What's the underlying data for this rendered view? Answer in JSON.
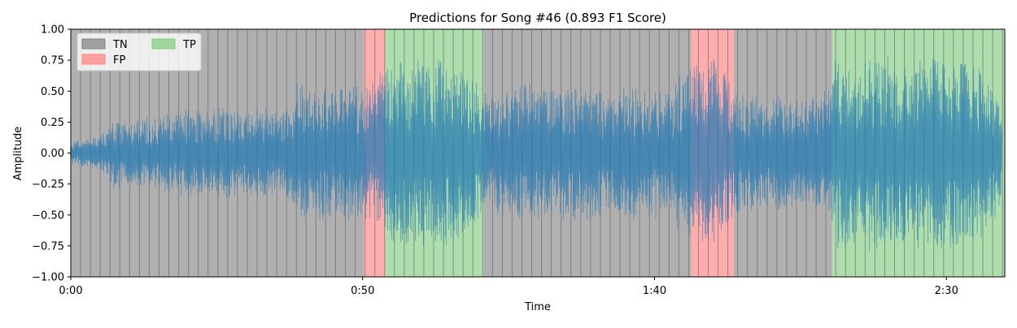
{
  "chart_data": {
    "type": "area",
    "title": "Predictions for Song #46 (0.893 F1 Score)",
    "xlabel": "Time",
    "ylabel": "Amplitude",
    "xlim": [
      0,
      160
    ],
    "ylim": [
      -1.0,
      1.0
    ],
    "x_ticks": [
      {
        "value": 0,
        "label": "0:00"
      },
      {
        "value": 50,
        "label": "0:50"
      },
      {
        "value": 100,
        "label": "1:40"
      },
      {
        "value": 150,
        "label": "2:30"
      }
    ],
    "y_ticks": [
      {
        "value": 1.0,
        "label": "1.00"
      },
      {
        "value": 0.75,
        "label": "0.75"
      },
      {
        "value": 0.5,
        "label": "0.50"
      },
      {
        "value": 0.25,
        "label": "0.25"
      },
      {
        "value": 0.0,
        "label": "0.00"
      },
      {
        "value": -0.25,
        "label": "−0.25"
      },
      {
        "value": -0.5,
        "label": "−0.50"
      },
      {
        "value": -0.75,
        "label": "−0.75"
      },
      {
        "value": -1.0,
        "label": "−1.00"
      }
    ],
    "legend": {
      "placement": "top-left",
      "entries": [
        {
          "label": "TN",
          "color": "#808080"
        },
        {
          "label": "FP",
          "color": "#ff7f7f"
        },
        {
          "label": "TP",
          "color": "#7fcc7f"
        }
      ]
    },
    "colors": {
      "TN": "#808080",
      "FP": "#ff6a6a",
      "TP": "#6cc16c",
      "waveform": "#1f77b4"
    },
    "segment_boundary_interval_seconds": 1.68,
    "regions": [
      {
        "label": "TN",
        "start": 0.0,
        "end": 50.2
      },
      {
        "label": "FP",
        "start": 50.2,
        "end": 53.9
      },
      {
        "label": "TP",
        "start": 53.9,
        "end": 70.7
      },
      {
        "label": "TN",
        "start": 70.7,
        "end": 106.3
      },
      {
        "label": "FP",
        "start": 106.3,
        "end": 113.6
      },
      {
        "label": "TP",
        "start": 113.6,
        "end": 113.6
      },
      {
        "label": "TN",
        "start": 113.6,
        "end": 130.4
      },
      {
        "label": "TP",
        "start": 130.4,
        "end": 160.0
      }
    ],
    "amplitude_envelope": {
      "time": [
        0,
        3,
        6,
        7,
        9,
        12,
        15,
        18,
        21,
        24,
        27,
        30,
        33,
        36,
        38,
        39,
        41,
        44,
        47,
        50,
        52,
        54,
        56,
        60,
        64,
        68,
        70,
        72,
        74,
        77,
        80,
        83,
        86,
        89,
        92,
        95,
        98,
        101,
        103,
        104,
        106,
        108,
        110,
        112,
        114,
        116,
        119,
        122,
        125,
        128,
        130,
        131,
        133,
        136,
        140,
        144,
        148,
        152,
        156,
        159,
        160
      ],
      "peak": [
        0.1,
        0.12,
        0.18,
        0.3,
        0.28,
        0.3,
        0.32,
        0.35,
        0.38,
        0.35,
        0.4,
        0.35,
        0.38,
        0.35,
        0.4,
        0.6,
        0.55,
        0.6,
        0.58,
        0.55,
        0.6,
        0.75,
        0.8,
        0.78,
        0.8,
        0.7,
        0.55,
        0.5,
        0.52,
        0.58,
        0.6,
        0.55,
        0.6,
        0.58,
        0.5,
        0.55,
        0.6,
        0.55,
        0.5,
        0.7,
        0.72,
        0.75,
        0.78,
        0.7,
        0.55,
        0.5,
        0.48,
        0.5,
        0.48,
        0.5,
        0.55,
        0.8,
        0.82,
        0.85,
        0.8,
        0.82,
        0.85,
        0.8,
        0.75,
        0.5,
        0.1
      ]
    }
  }
}
